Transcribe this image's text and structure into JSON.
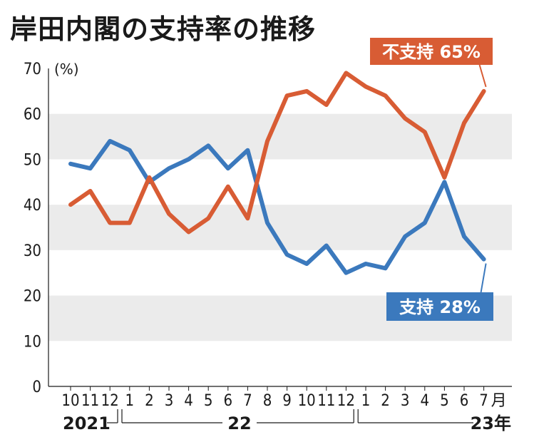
{
  "title": "岸田内閣の支持率の推移",
  "colors": {
    "support": "#3b79bd",
    "nonsupport": "#d85c34",
    "band": "#ebebeb"
  },
  "chart_data": {
    "type": "line",
    "title": "岸田内閣の支持率の推移",
    "y_unit": "(%)",
    "ylim": [
      0,
      70
    ],
    "yticks": [
      "0",
      "10",
      "20",
      "30",
      "40",
      "50",
      "60",
      "70"
    ],
    "categories": [
      "10",
      "11",
      "12",
      "1",
      "2",
      "3",
      "4",
      "5",
      "6",
      "7",
      "8",
      "9",
      "10",
      "11",
      "12",
      "1",
      "2",
      "3",
      "4",
      "5",
      "6",
      "7"
    ],
    "month_suffix": "月",
    "year_labels": [
      "2021",
      "22",
      "23年"
    ],
    "series": [
      {
        "key": "support",
        "name": "支持",
        "callout": "支持 28%",
        "values": [
          49,
          48,
          54,
          52,
          45,
          48,
          50,
          53,
          48,
          52,
          36,
          29,
          27,
          31,
          25,
          27,
          26,
          33,
          36,
          45,
          33,
          28
        ]
      },
      {
        "key": "nonsupport",
        "name": "不支持",
        "callout": "不支持 65%",
        "values": [
          40,
          43,
          36,
          36,
          46,
          38,
          34,
          37,
          44,
          37,
          54,
          64,
          65,
          62,
          69,
          66,
          64,
          59,
          56,
          46,
          58,
          65
        ]
      }
    ]
  }
}
